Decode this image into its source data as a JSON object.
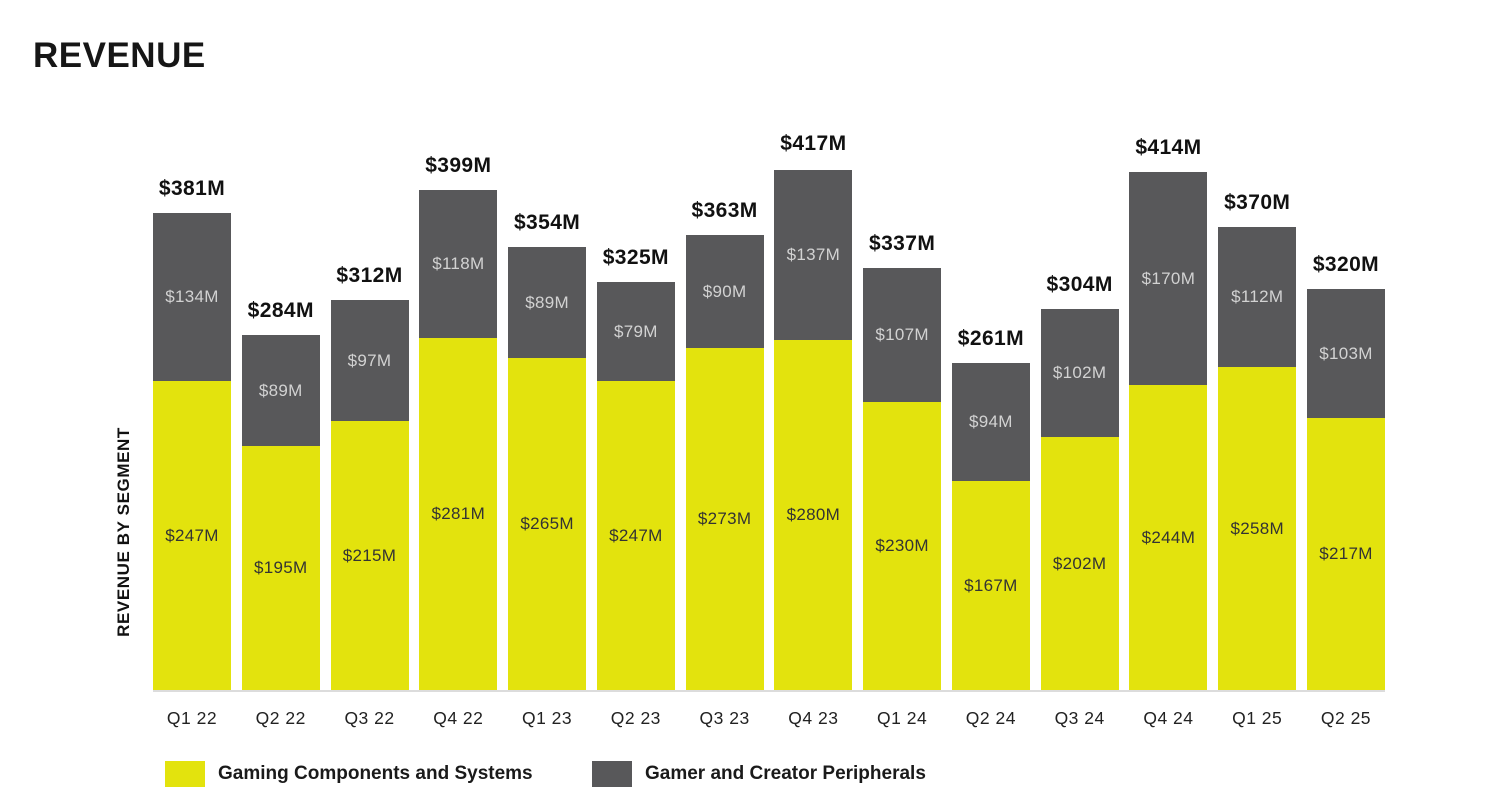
{
  "title": "REVENUE",
  "chart_data": {
    "type": "bar",
    "stacked": true,
    "title": "REVENUE",
    "ylabel": "REVENUE BY SEGMENT",
    "xlabel": "",
    "grid": false,
    "legend_position": "bottom",
    "ylim": [
      0,
      417
    ],
    "unit": "USD millions",
    "categories": [
      "Q1 22",
      "Q2 22",
      "Q3 22",
      "Q4 22",
      "Q1 23",
      "Q2 23",
      "Q3 23",
      "Q4 23",
      "Q1 24",
      "Q2 24",
      "Q3 24",
      "Q4 24",
      "Q1 25",
      "Q2 25"
    ],
    "totals": [
      381,
      284,
      312,
      399,
      354,
      325,
      363,
      417,
      337,
      261,
      304,
      414,
      370,
      320
    ],
    "totals_labels": [
      "$381M",
      "$284M",
      "$312M",
      "$399M",
      "$354M",
      "$325M",
      "$363M",
      "$417M",
      "$337M",
      "$261M",
      "$304M",
      "$414M",
      "$370M",
      "$320M"
    ],
    "series": [
      {
        "name": "Gaming Components and Systems",
        "color": "#e3e30d",
        "values": [
          247,
          195,
          215,
          281,
          265,
          247,
          273,
          280,
          230,
          167,
          202,
          244,
          258,
          217
        ],
        "labels": [
          "$247M",
          "$195M",
          "$215M",
          "$281M",
          "$265M",
          "$247M",
          "$273M",
          "$280M",
          "$230M",
          "$167M",
          "$202M",
          "$244M",
          "$258M",
          "$217M"
        ]
      },
      {
        "name": "Gamer and Creator Peripherals",
        "color": "#58585a",
        "values": [
          134,
          89,
          97,
          118,
          89,
          79,
          90,
          137,
          107,
          94,
          102,
          170,
          112,
          103
        ],
        "labels": [
          "$134M",
          "$89M",
          "$97M",
          "$118M",
          "$89M",
          "$79M",
          "$90M",
          "$137M",
          "$107M",
          "$94M",
          "$102M",
          "$170M",
          "$112M",
          "$103M"
        ]
      }
    ]
  }
}
